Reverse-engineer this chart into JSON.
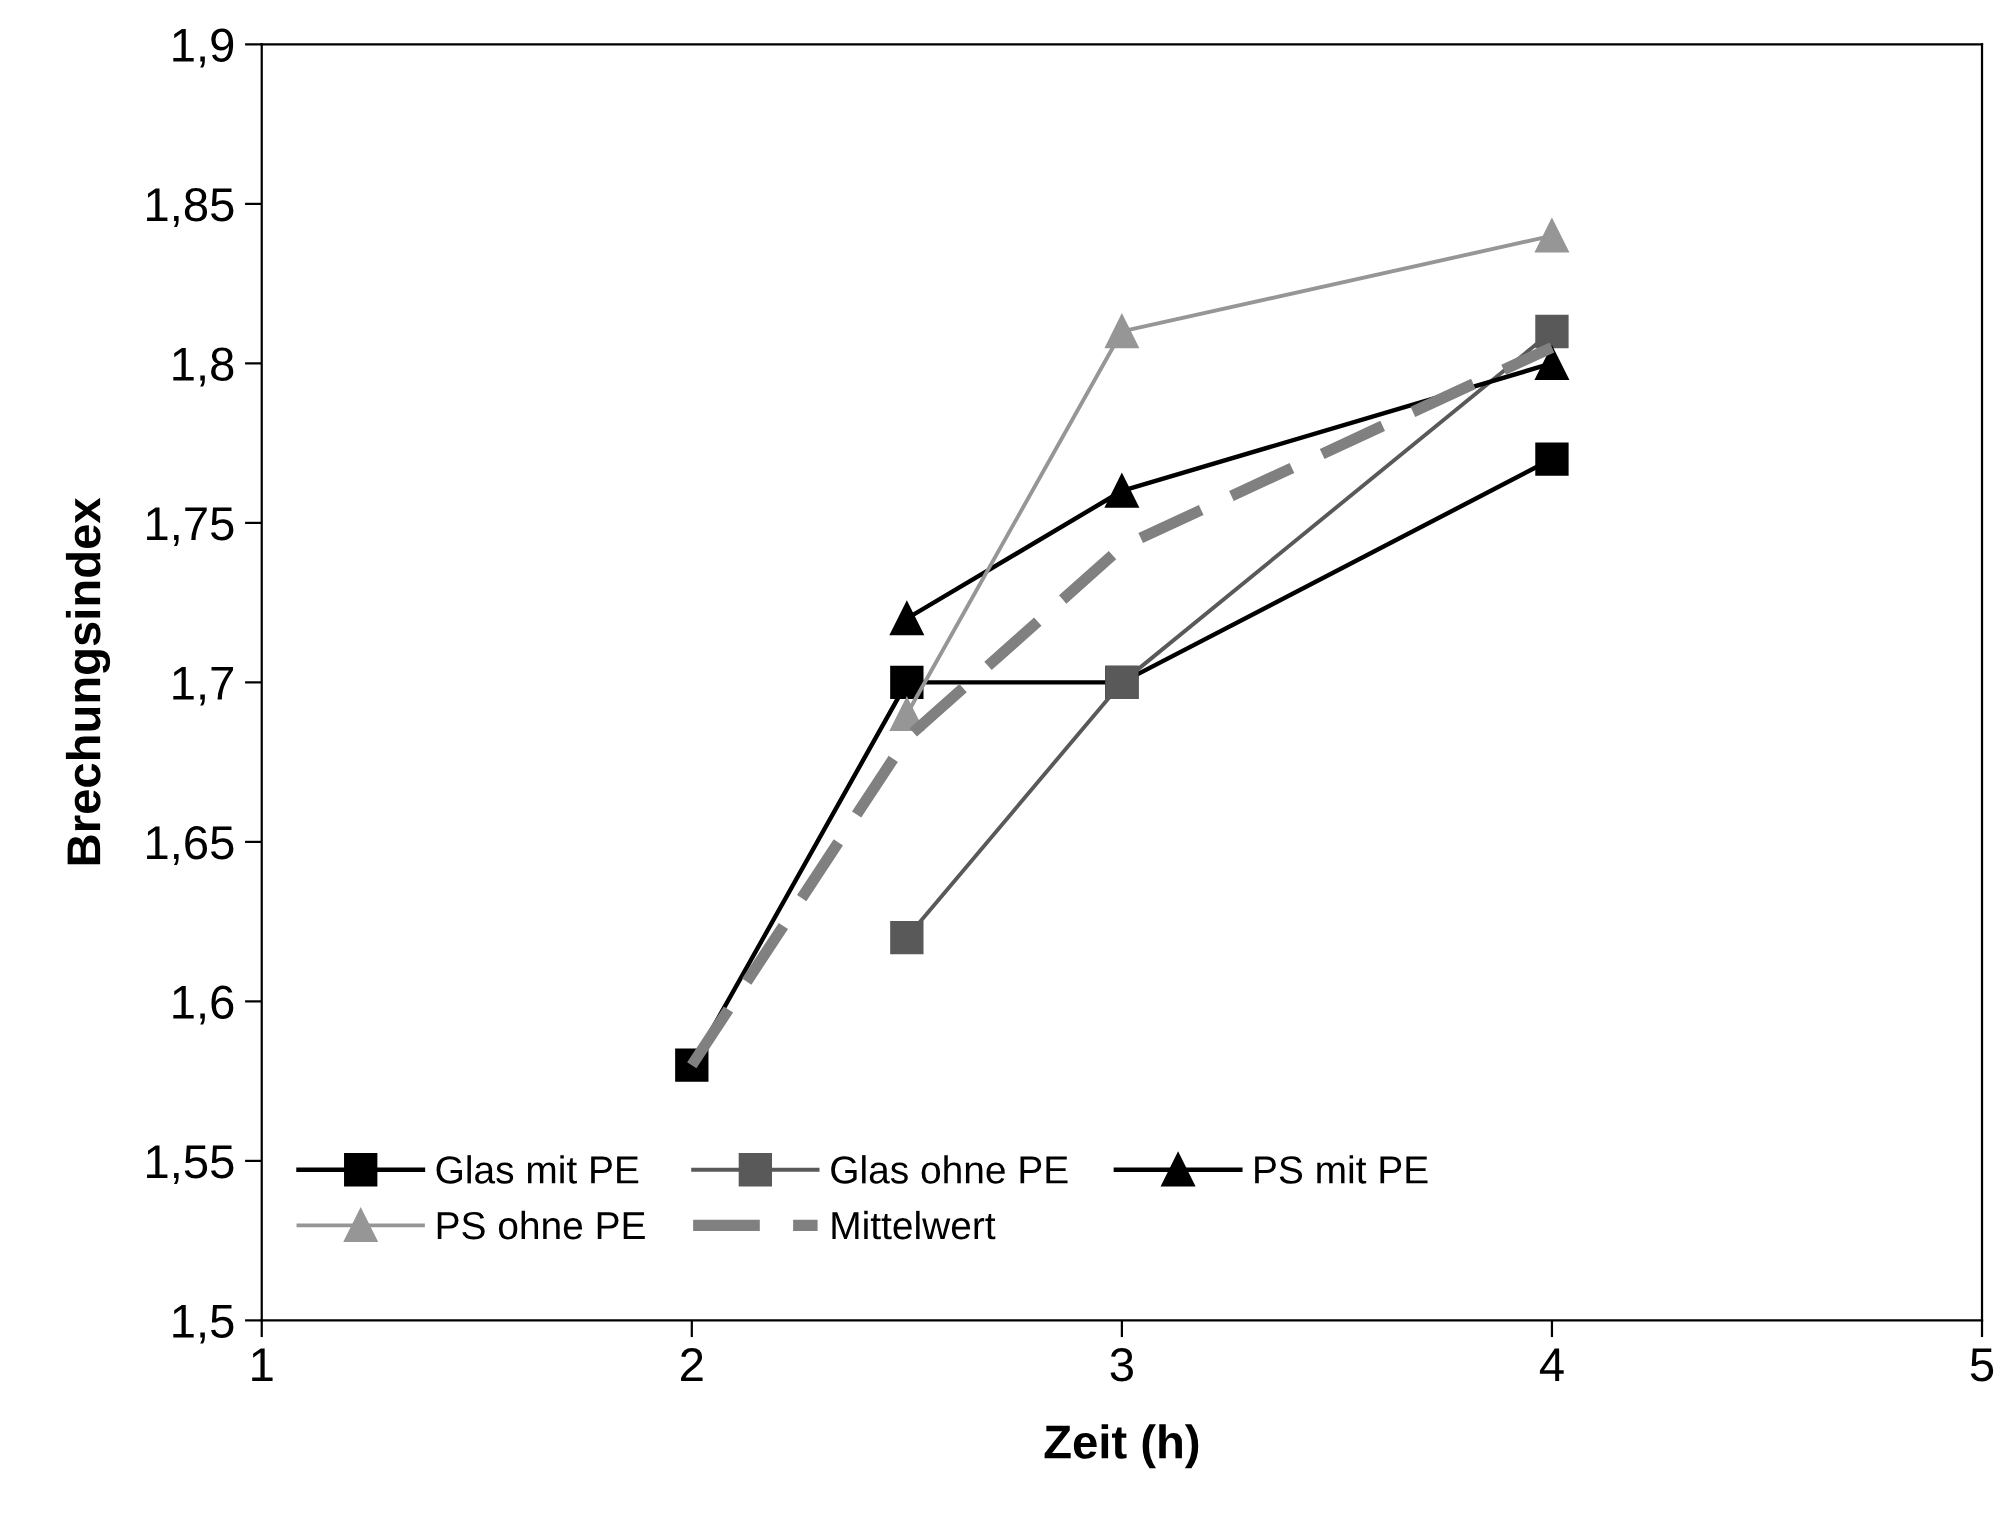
{
  "chart_data": {
    "type": "line",
    "xlabel": "Zeit (h)",
    "ylabel": "Brechungsindex",
    "xlim": [
      1,
      5
    ],
    "xticks": [
      1,
      2,
      3,
      4,
      5
    ],
    "ylim": [
      1.5,
      1.9
    ],
    "yticks": [
      {
        "value": 1.5,
        "label": "1,5"
      },
      {
        "value": 1.55,
        "label": "1,55"
      },
      {
        "value": 1.6,
        "label": "1,6"
      },
      {
        "value": 1.65,
        "label": "1,65"
      },
      {
        "value": 1.7,
        "label": "1,7"
      },
      {
        "value": 1.75,
        "label": "1,75"
      },
      {
        "value": 1.8,
        "label": "1,8"
      },
      {
        "value": 1.85,
        "label": "1,85"
      },
      {
        "value": 1.9,
        "label": "1,9"
      }
    ],
    "grid": false,
    "legend": "bottom",
    "series": [
      {
        "name": "Glas mit PE",
        "color": "#000000",
        "marker": "square",
        "line_style": "solid",
        "x": [
          2,
          2.5,
          3,
          4
        ],
        "values": [
          1.58,
          1.7,
          1.7,
          1.77
        ]
      },
      {
        "name": "Glas ohne PE",
        "color": "#595959",
        "marker": "square",
        "line_style": "solid",
        "x": [
          2.5,
          3,
          4
        ],
        "values": [
          1.62,
          1.7,
          1.81
        ]
      },
      {
        "name": "PS mit PE",
        "color": "#000000",
        "marker": "triangle",
        "line_style": "solid",
        "x": [
          2.5,
          3,
          4
        ],
        "values": [
          1.72,
          1.76,
          1.8
        ]
      },
      {
        "name": "PS ohne PE",
        "color": "#969696",
        "marker": "triangle",
        "line_style": "solid",
        "x": [
          2.5,
          3,
          4
        ],
        "values": [
          1.69,
          1.81,
          1.84
        ]
      },
      {
        "name": "Mittelwert",
        "color": "#808080",
        "marker": "none",
        "line_style": "dashed",
        "x": [
          2,
          2.5,
          3,
          4
        ],
        "values": [
          1.58,
          1.6825,
          1.7425,
          1.805
        ]
      }
    ]
  }
}
